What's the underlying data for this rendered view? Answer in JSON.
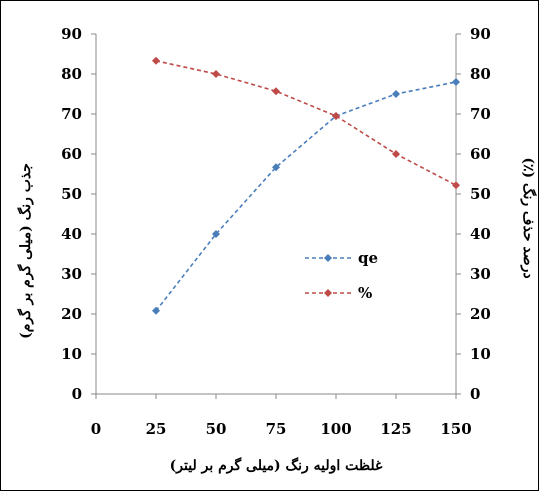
{
  "chart_data": {
    "type": "line",
    "x": [
      25,
      50,
      75,
      100,
      125,
      150
    ],
    "xlim": [
      0,
      150
    ],
    "x_ticks": [
      0,
      25,
      50,
      75,
      100,
      125,
      150
    ],
    "ylim_left": [
      0,
      90
    ],
    "ylim_right": [
      0,
      90
    ],
    "y_ticks": [
      0,
      10,
      20,
      30,
      40,
      50,
      60,
      70,
      80,
      90
    ],
    "xlabel": "غلظت اولیه رنگ (میلی گرم بر لیتر)",
    "ylabel_left": "جذب رنگ (میلی گرم بر گرم)",
    "ylabel_right": "درصد حذف رنگ (٪)",
    "legend_position": "center",
    "grid": false,
    "series": [
      {
        "name": "qe",
        "axis": "left",
        "color": "#4a7ebb",
        "values": [
          20.8,
          40.0,
          56.7,
          69.5,
          75.0,
          78.0
        ]
      },
      {
        "name": "%",
        "axis": "right",
        "color": "#be4b48",
        "values": [
          83.3,
          80.0,
          75.7,
          69.5,
          60.0,
          52.2
        ]
      }
    ]
  }
}
